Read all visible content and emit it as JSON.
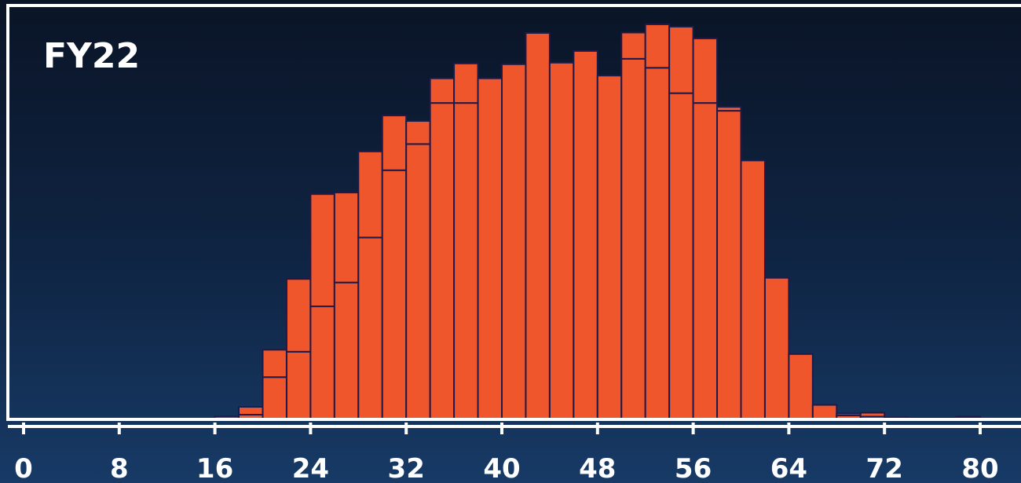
{
  "chart_data": {
    "type": "bar",
    "subtype": "stacked-histogram",
    "title": "FY22",
    "xlabel": "",
    "ylabel": "",
    "xlim": [
      0,
      80
    ],
    "ylim": [
      0,
      100
    ],
    "x_ticks": [
      0,
      8,
      16,
      24,
      32,
      40,
      48,
      56,
      64,
      72,
      80
    ],
    "bin_width": 2,
    "grid": false,
    "legend": "none",
    "colors": {
      "bar": "#f0562b",
      "bar_edge": "#1e1a4a",
      "frame": "#ffffff"
    },
    "bins_start": [
      16,
      18,
      20,
      22,
      24,
      26,
      28,
      30,
      32,
      34,
      36,
      38,
      40,
      42,
      44,
      46,
      48,
      50,
      52,
      54,
      56,
      58,
      60,
      62,
      64,
      66,
      68,
      70,
      72,
      74,
      76,
      78
    ],
    "series": [
      {
        "values": [
          0.5,
          1.0,
          10.6,
          17.1,
          28.7,
          34.8,
          46.3,
          63.5,
          70.2,
          80.7,
          80.7,
          87.0,
          90.6,
          98.6,
          91.0,
          94.0,
          87.7,
          92.0,
          89.7,
          83.2,
          80.7,
          78.7,
          66.0,
          36.0,
          16.5,
          3.5,
          0.8,
          0.5,
          0.3,
          0.2,
          0.2,
          0.2
        ]
      },
      {
        "values": [
          0.0,
          2.0,
          7.0,
          18.6,
          28.7,
          23.0,
          22.0,
          14.0,
          5.9,
          6.3,
          10.1,
          0.0,
          0.0,
          0.0,
          0.0,
          0.0,
          0.0,
          6.7,
          11.1,
          17.0,
          16.5,
          1.0,
          0.0,
          0.0,
          0.0,
          0.0,
          0.5,
          1.0,
          0.0,
          0.0,
          0.0,
          0.3
        ]
      }
    ]
  }
}
